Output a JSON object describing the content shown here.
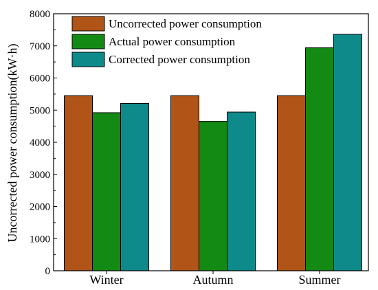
{
  "chart_data": {
    "type": "bar",
    "title": "",
    "xlabel": "",
    "ylabel": "Uncorrected power consumption(kW·h)",
    "ylim": [
      0,
      8000
    ],
    "yticks": [
      0,
      1000,
      2000,
      3000,
      4000,
      5000,
      6000,
      7000,
      8000
    ],
    "categories": [
      "Winter",
      "Autumn",
      "Summer"
    ],
    "legend_position": "top-left",
    "grid": false,
    "series": [
      {
        "name": "Uncorrected power consumption",
        "color": "#b05418",
        "values": [
          5450,
          5450,
          5450
        ]
      },
      {
        "name": "Actual power consumption",
        "color": "#138a13",
        "values": [
          4920,
          4650,
          6940
        ]
      },
      {
        "name": "Corrected power consumption",
        "color": "#0e8a8a",
        "values": [
          5210,
          4940,
          7360
        ]
      }
    ]
  }
}
